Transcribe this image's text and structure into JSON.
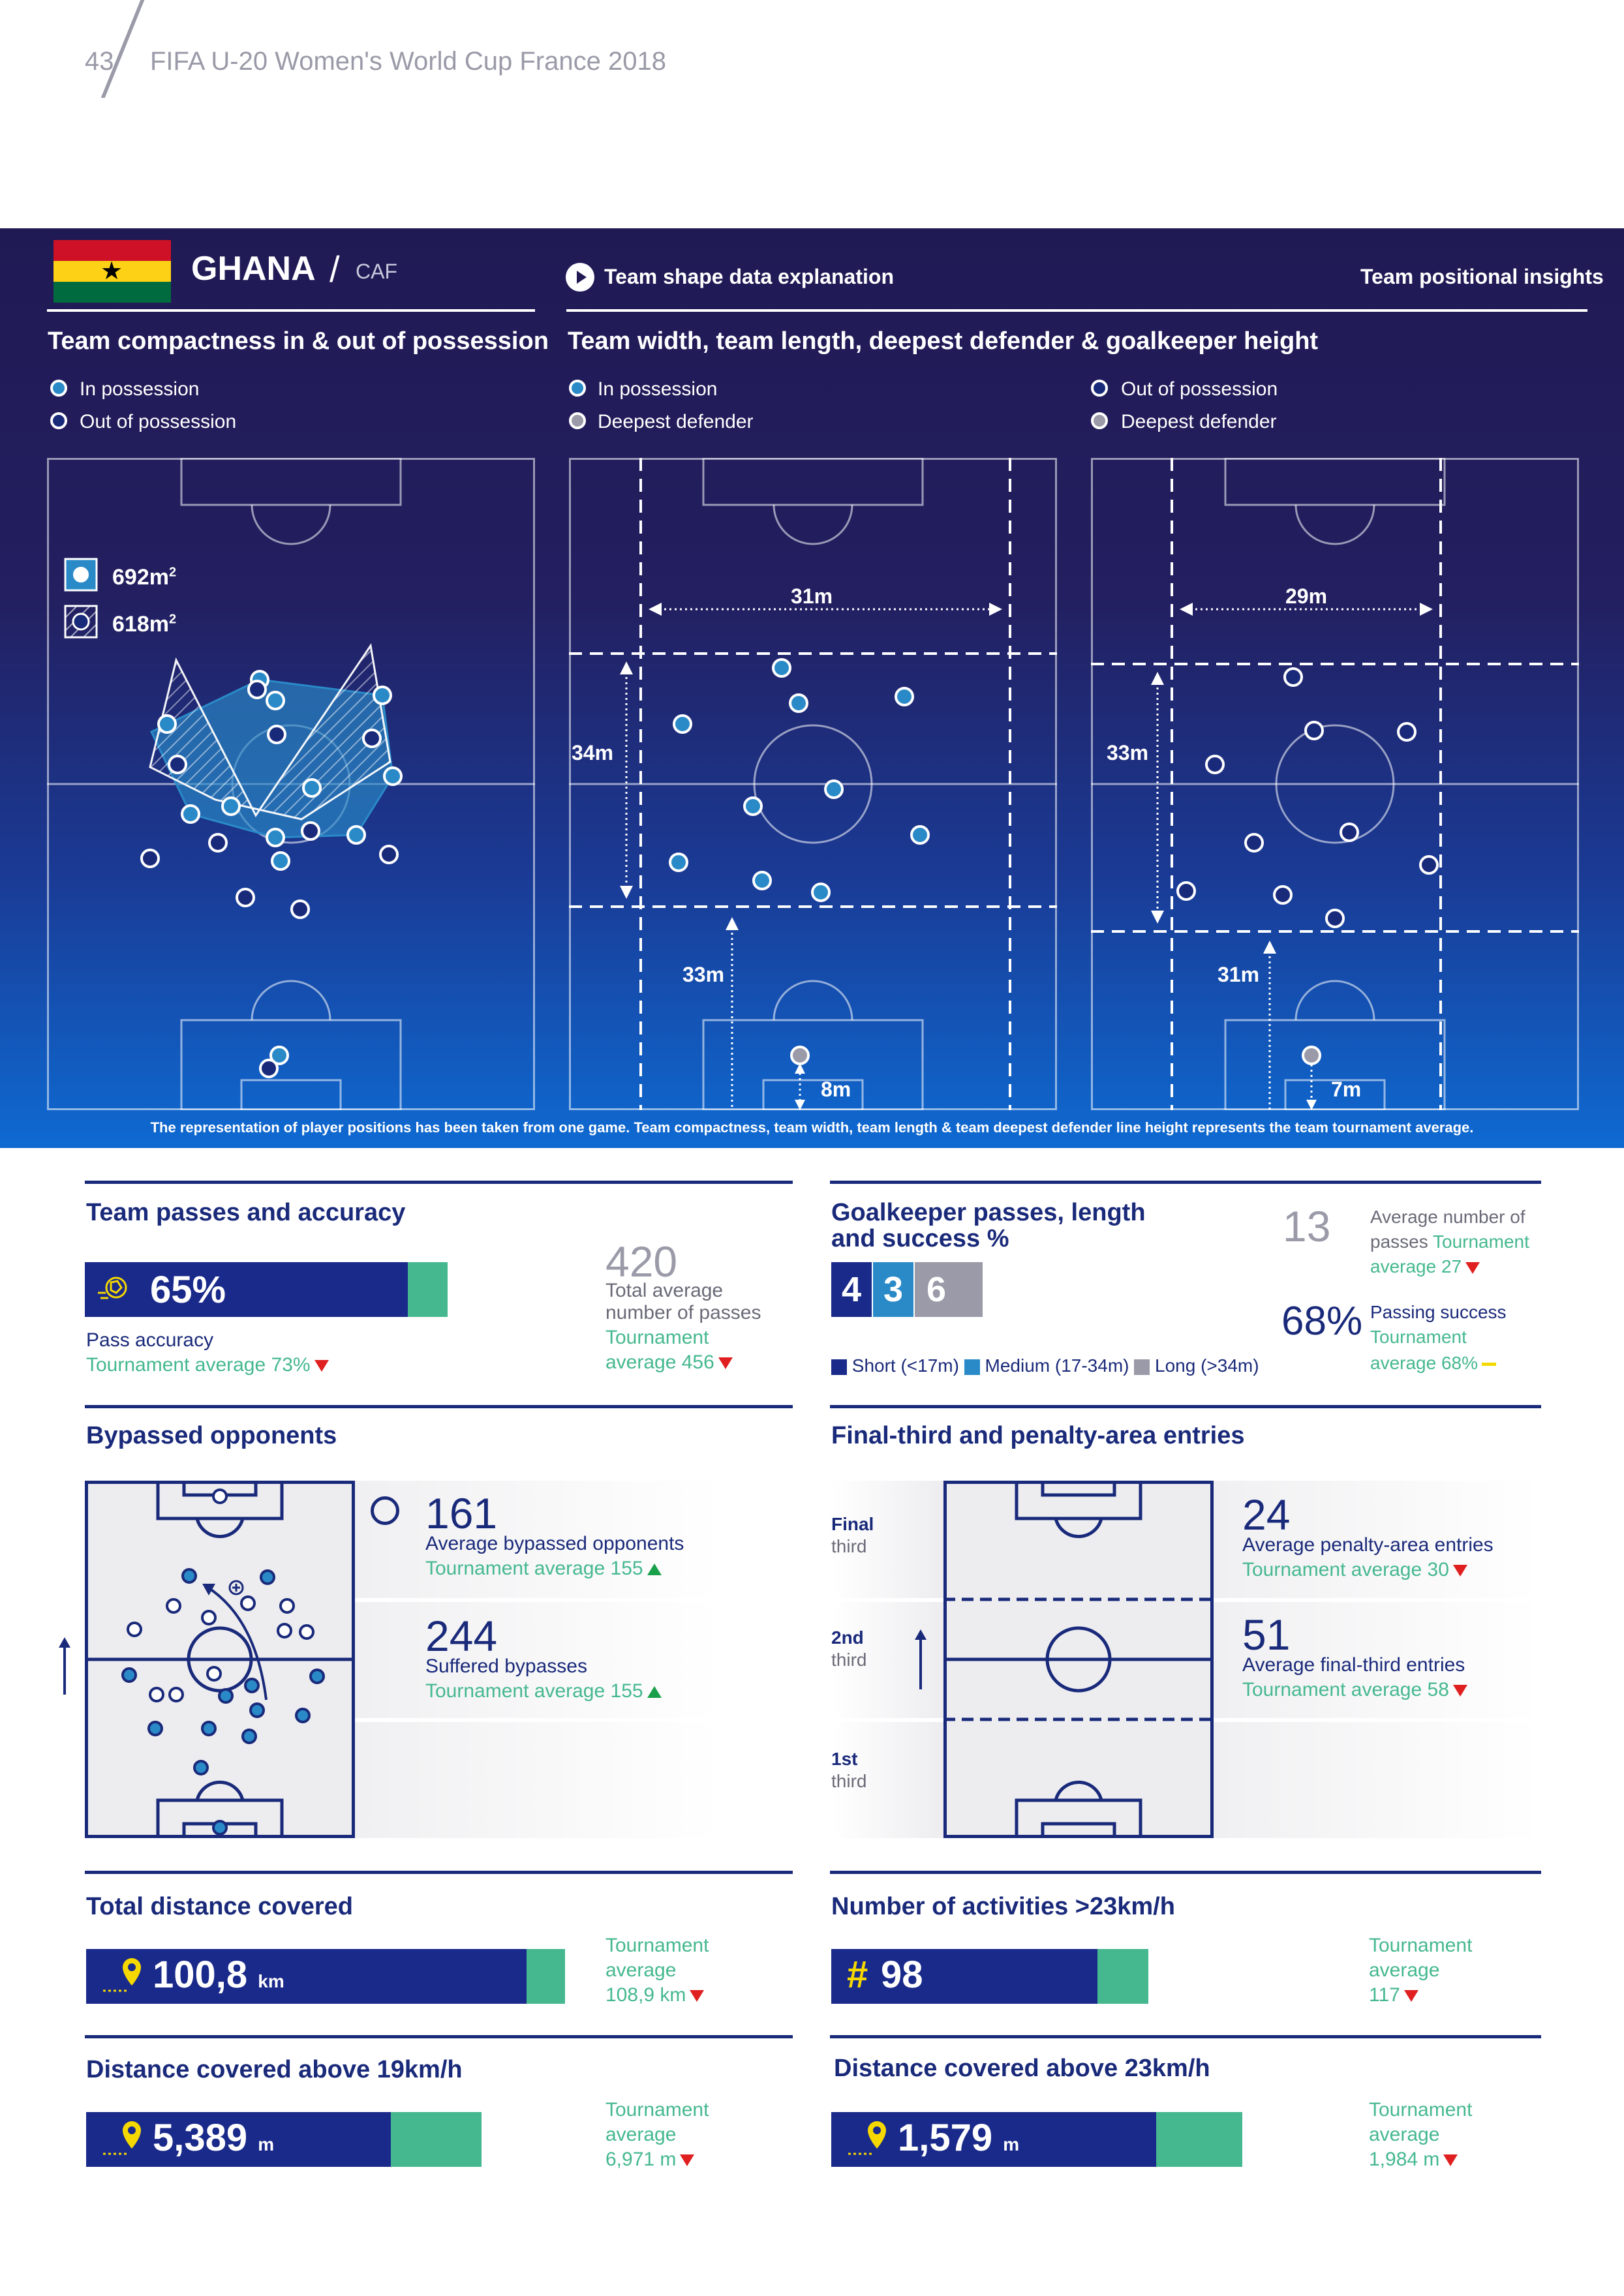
{
  "header": {
    "page_number": "43",
    "title": "FIFA U-20 Women's World Cup France 2018"
  },
  "team": {
    "name": "GHANA",
    "confederation": "CAF",
    "flag_colors": [
      "#ce1126",
      "#fcd116",
      "#006b3f"
    ]
  },
  "top_links": {
    "explanation": "Team shape data explanation",
    "insights": "Team positional insights"
  },
  "compactness": {
    "title": "Team compactness in & out of possession",
    "legend_in": "In possession",
    "legend_out": "Out of possession",
    "area_in": "692m",
    "area_out": "618m",
    "sup": "2"
  },
  "width_length": {
    "title": "Team width, team length, deepest defender & goalkeeper height",
    "in_legend": "In possession",
    "in_deepest": "Deepest defender",
    "out_legend": "Out of possession",
    "out_deepest": "Deepest defender",
    "in_width": "31m",
    "in_length": "34m",
    "in_defender": "33m",
    "in_gk": "8m",
    "out_width": "29m",
    "out_length": "33m",
    "out_defender": "31m",
    "out_gk": "7m"
  },
  "footnote": "The representation of player positions has been taken from one game. Team compactness, team width, team length & team deepest defender line height represents the team tournament average.",
  "passes": {
    "title": "Team passes and accuracy",
    "accuracy": "65%",
    "accuracy_fraction": 0.89,
    "accuracy_label": "Pass accuracy",
    "accuracy_avg": "Tournament average 73%",
    "total": "420",
    "total_label_1": "Total average",
    "total_label_2": "number of passes",
    "total_avg_1": "Tournament",
    "total_avg_2": "average 456"
  },
  "goalkeeper": {
    "title_1": "Goalkeeper passes, length",
    "title_2": "and success %",
    "short": "4",
    "medium": "3",
    "long": "6",
    "legend_short": "Short (<17m)",
    "legend_medium": "Medium (17-34m)",
    "legend_long": "Long (>34m)",
    "avg_passes": "13",
    "avg_passes_label_1": "Average number of",
    "avg_passes_label_2": "passes",
    "avg_passes_t": "Tournament",
    "avg_passes_t2": "average 27",
    "success": "68%",
    "success_label": "Passing success",
    "success_t1": "Tournament",
    "success_t2": "average 68%",
    "colors": {
      "short": "#1a2a8a",
      "medium": "#2a8ac8",
      "long": "#9a9aa8"
    }
  },
  "bypassed": {
    "title": "Bypassed opponents",
    "avg": "161",
    "avg_label": "Average bypassed opponents",
    "avg_t": "Tournament average 155",
    "suffered": "244",
    "suffered_label": "Suffered bypasses",
    "suffered_t": "Tournament average 155"
  },
  "entries": {
    "title": "Final-third and penalty-area entries",
    "final_1": "Final",
    "final_2": "third",
    "second_1": "2nd",
    "second_2": "third",
    "first_1": "1st",
    "first_2": "third",
    "penalty": "24",
    "penalty_label": "Average penalty-area entries",
    "penalty_t": "Tournament average 30",
    "final": "51",
    "final_label": "Average final-third entries",
    "final_t": "Tournament average 58"
  },
  "distance": {
    "title": "Total distance covered",
    "value": "100,8",
    "unit": "km",
    "fraction": 0.92,
    "t1": "Tournament",
    "t2": "average",
    "t3": "108,9 km"
  },
  "activities": {
    "title": "Number of activities >23km/h",
    "value": "98",
    "fraction": 0.84,
    "t1": "Tournament",
    "t2": "average",
    "t3": "117"
  },
  "dist19": {
    "title": "Distance covered above 19km/h",
    "value": "5,389",
    "unit": "m",
    "fraction": 0.77,
    "t1": "Tournament",
    "t2": "average",
    "t3": "6,971 m"
  },
  "dist23": {
    "title": "Distance covered above 23km/h",
    "value": "1,579",
    "unit": "m",
    "fraction": 0.79,
    "t1": "Tournament",
    "t2": "average",
    "t3": "1,984 m"
  }
}
